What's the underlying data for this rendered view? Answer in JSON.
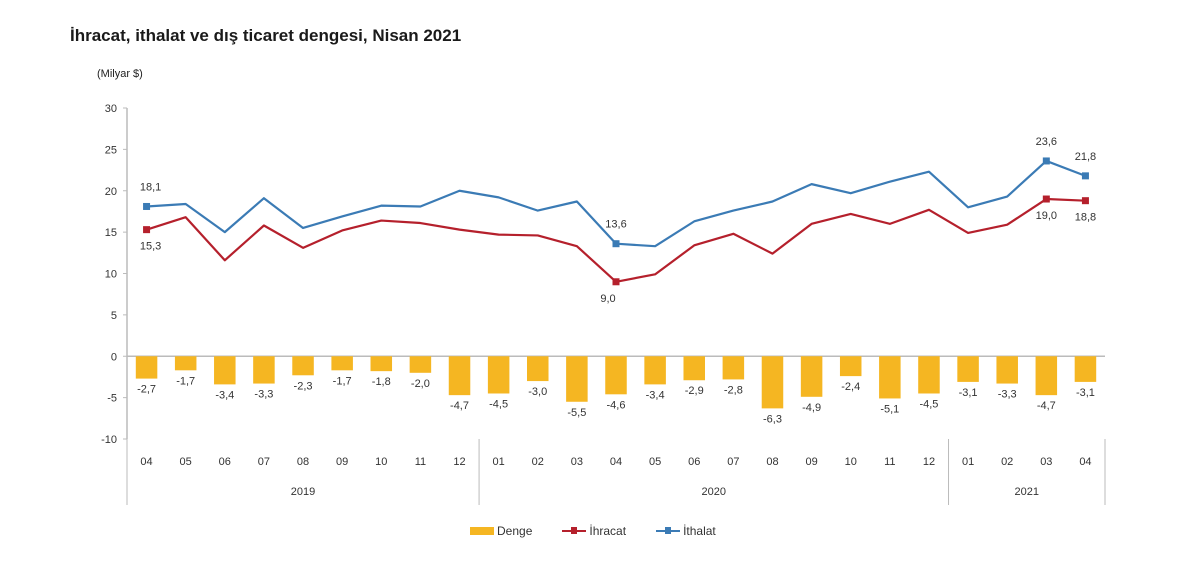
{
  "chart_data": {
    "type": "bar+line",
    "title": "İhracat, ithalat ve dış ticaret dengesi, Nisan 2021",
    "ylabel": "(Milyar $)",
    "ylim": [
      -10,
      30
    ],
    "yticks": [
      -10,
      -5,
      0,
      5,
      10,
      15,
      20,
      25,
      30
    ],
    "grid": false,
    "legend_position": "bottom",
    "categories": [
      "04",
      "05",
      "06",
      "07",
      "08",
      "09",
      "10",
      "11",
      "12",
      "01",
      "02",
      "03",
      "04",
      "05",
      "06",
      "07",
      "08",
      "09",
      "10",
      "11",
      "12",
      "01",
      "02",
      "03",
      "04"
    ],
    "year_groups": [
      {
        "label": "2019",
        "count": 9
      },
      {
        "label": "2020",
        "count": 12
      },
      {
        "label": "2021",
        "count": 4
      }
    ],
    "series": [
      {
        "name": "Denge",
        "kind": "bar",
        "color": "#f5b622",
        "values": [
          -2.7,
          -1.7,
          -3.4,
          -3.3,
          -2.3,
          -1.7,
          -1.8,
          -2.0,
          -4.7,
          -4.5,
          -3.0,
          -5.5,
          -4.6,
          -3.4,
          -2.9,
          -2.8,
          -6.3,
          -4.9,
          -2.4,
          -5.1,
          -4.5,
          -3.1,
          -3.3,
          -4.7,
          -3.1
        ],
        "labels": [
          "-2,7",
          "-1,7",
          "-3,4",
          "-3,3",
          "-2,3",
          "-1,7",
          "-1,8",
          "-2,0",
          "-4,7",
          "-4,5",
          "-3,0",
          "-5,5",
          "-4,6",
          "-3,4",
          "-2,9",
          "-2,8",
          "-6,3",
          "-4,9",
          "-2,4",
          "-5,1",
          "-4,5",
          "-3,1",
          "-3,3",
          "-4,7",
          "-3,1"
        ]
      },
      {
        "name": "İhracat",
        "kind": "line",
        "color": "#b5202c",
        "values": [
          15.3,
          16.8,
          11.6,
          15.8,
          13.1,
          15.2,
          16.4,
          16.1,
          15.3,
          14.7,
          14.6,
          13.3,
          9.0,
          9.9,
          13.4,
          14.8,
          12.4,
          16.0,
          17.2,
          16.0,
          17.7,
          14.9,
          15.9,
          19.0,
          18.8
        ],
        "marked": [
          {
            "index": 0,
            "label": "15,3"
          },
          {
            "index": 12,
            "label": "9,0"
          },
          {
            "index": 23,
            "label": "19,0"
          },
          {
            "index": 24,
            "label": "18,8"
          }
        ]
      },
      {
        "name": "İthalat",
        "kind": "line",
        "color": "#3b7bb5",
        "values": [
          18.1,
          18.4,
          15.0,
          19.1,
          15.5,
          16.9,
          18.2,
          18.1,
          20.0,
          19.2,
          17.6,
          18.7,
          13.6,
          13.3,
          16.3,
          17.6,
          18.7,
          20.8,
          19.7,
          21.1,
          22.3,
          18.0,
          19.3,
          23.6,
          21.8
        ],
        "marked": [
          {
            "index": 0,
            "label": "18,1"
          },
          {
            "index": 12,
            "label": "13,6"
          },
          {
            "index": 23,
            "label": "23,6"
          },
          {
            "index": 24,
            "label": "21,8"
          }
        ]
      }
    ]
  }
}
